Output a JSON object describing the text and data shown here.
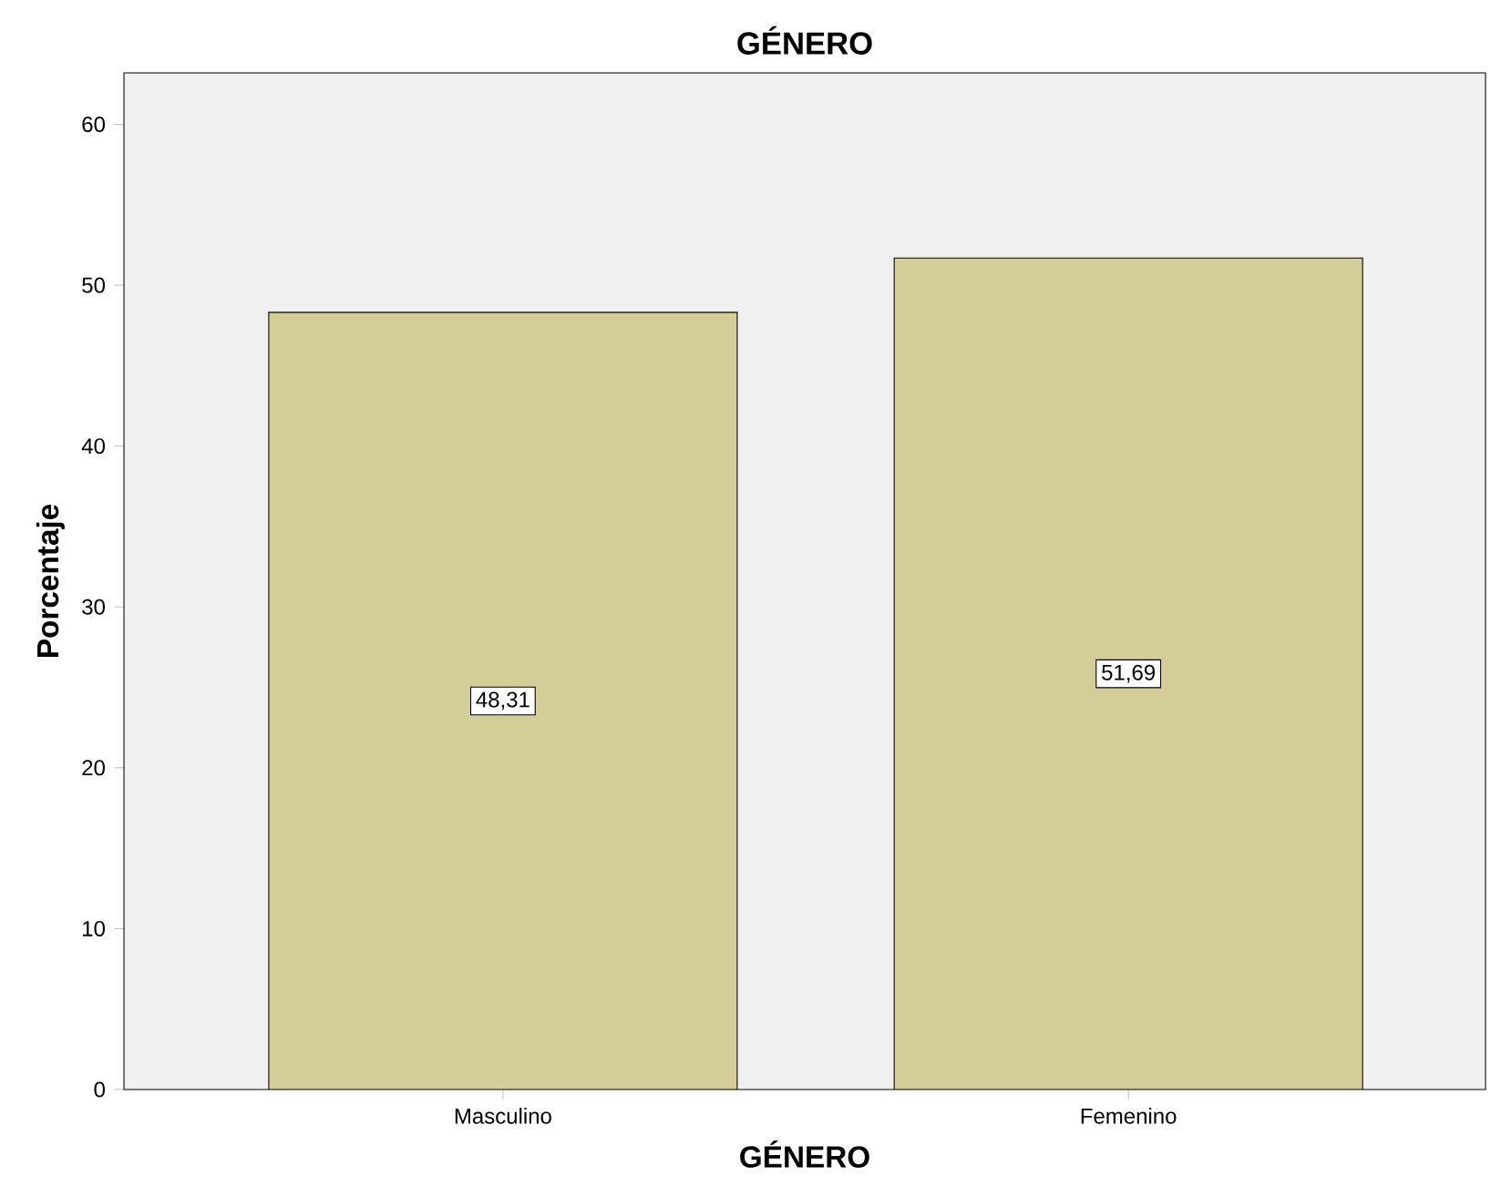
{
  "chart_data": {
    "type": "bar",
    "title": "GÉNERO",
    "xlabel": "GÉNERO",
    "ylabel": "Porcentaje",
    "categories": [
      "Masculino",
      "Femenino"
    ],
    "values": [
      48.31,
      51.69
    ],
    "value_labels": [
      "48,31",
      "51,69"
    ],
    "color": "#d3ce97",
    "ylim": [
      0,
      63.2
    ],
    "yticks": [
      0,
      10,
      20,
      30,
      40,
      50,
      60
    ],
    "grid": false
  }
}
